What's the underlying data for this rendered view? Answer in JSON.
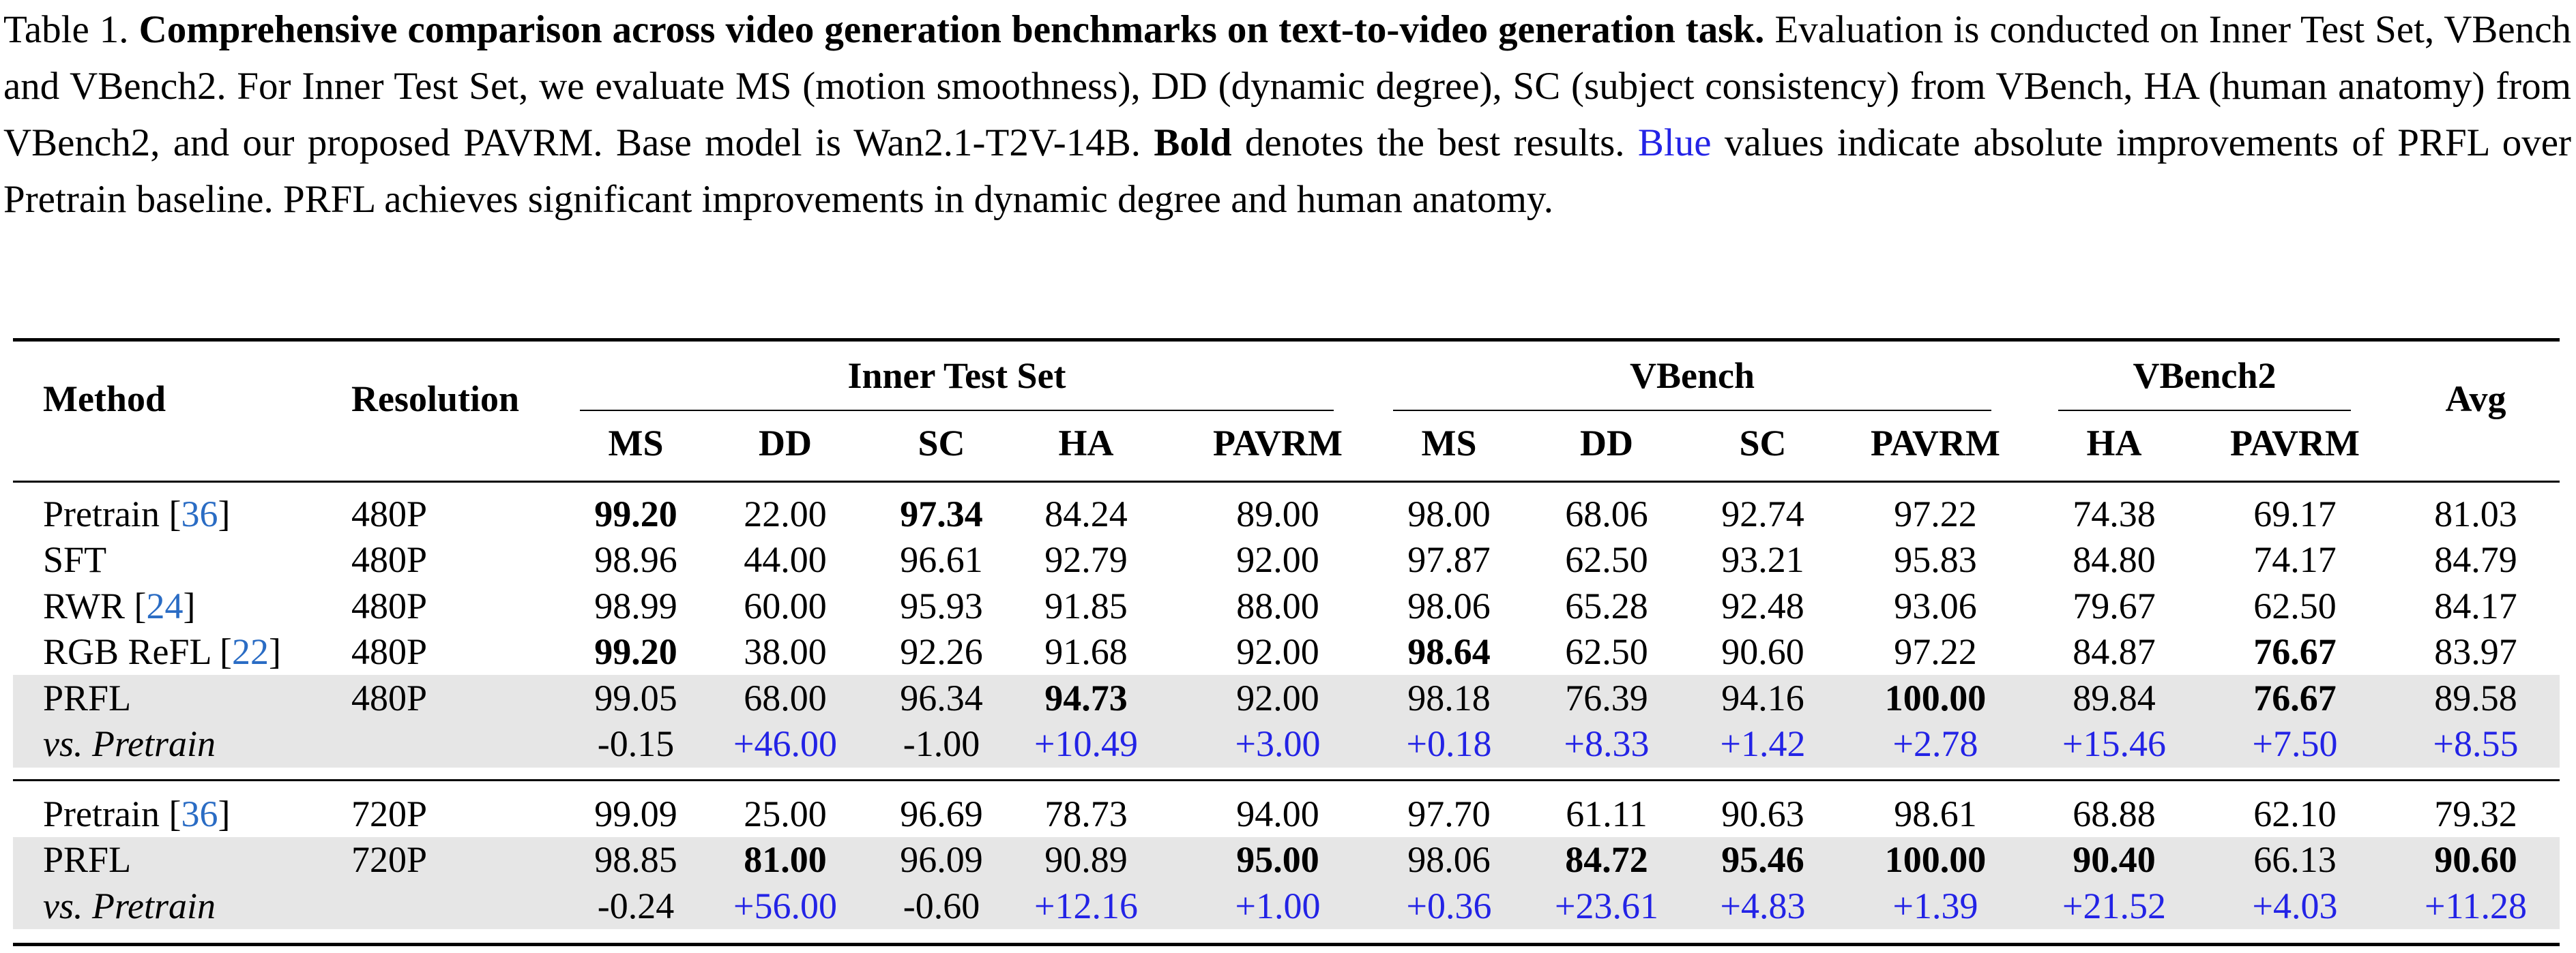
{
  "caption": {
    "label": "Table 1.",
    "title": "Comprehensive comparison across video generation benchmarks on text-to-video generation task.",
    "text_1": "Evaluation is conducted on Inner Test Set, VBench and VBench2. For Inner Test Set, we evaluate MS (motion smoothness), DD (dynamic degree), SC (subject consistency) from VBench, HA (human anatomy) from VBench2, and our proposed PAVRM. Base model is Wan2.1-T2V-14B.",
    "bold_word": "Bold",
    "text_2": "denotes the best results.",
    "blue_word": "Blue",
    "text_3": "values indicate absolute improvements of PRFL over Pretrain baseline. PRFL achieves significant improvements in dynamic degree and human anatomy."
  },
  "table": {
    "method_header": "Method",
    "resolution_header": "Resolution",
    "avg_header": "Avg",
    "groups": [
      {
        "label": "Inner Test Set",
        "columns": [
          "MS",
          "DD",
          "SC",
          "HA",
          "PAVRM"
        ]
      },
      {
        "label": "VBench",
        "columns": [
          "MS",
          "DD",
          "SC",
          "PAVRM"
        ]
      },
      {
        "label": "VBench2",
        "columns": [
          "HA",
          "PAVRM"
        ]
      }
    ],
    "blocks": [
      [
        {
          "method": "Pretrain",
          "ref": "[36]",
          "resolution": "480P",
          "values": [
            "99.20",
            "22.00",
            "97.34",
            "84.24",
            "89.00",
            "98.00",
            "68.06",
            "92.74",
            "97.22",
            "74.38",
            "69.17",
            "81.03"
          ],
          "bold": [
            0,
            2
          ]
        },
        {
          "method": "SFT",
          "resolution": "480P",
          "values": [
            "98.96",
            "44.00",
            "96.61",
            "92.79",
            "92.00",
            "97.87",
            "62.50",
            "93.21",
            "95.83",
            "84.80",
            "74.17",
            "84.79"
          ]
        },
        {
          "method": "RWR",
          "ref": "[24]",
          "resolution": "480P",
          "values": [
            "98.99",
            "60.00",
            "95.93",
            "91.85",
            "88.00",
            "98.06",
            "65.28",
            "92.48",
            "93.06",
            "79.67",
            "62.50",
            "84.17"
          ]
        },
        {
          "method": "RGB ReFL",
          "ref": "[22]",
          "resolution": "480P",
          "values": [
            "99.20",
            "38.00",
            "92.26",
            "91.68",
            "92.00",
            "98.64",
            "62.50",
            "90.60",
            "97.22",
            "84.87",
            "76.67",
            "83.97"
          ],
          "bold": [
            0,
            5,
            10
          ]
        },
        {
          "method": "PRFL",
          "resolution": "480P",
          "values": [
            "99.05",
            "68.00",
            "96.34",
            "94.73",
            "92.00",
            "98.18",
            "76.39",
            "94.16",
            "100.00",
            "89.84",
            "76.67",
            "89.58"
          ],
          "bold": [
            3,
            8,
            10
          ],
          "shaded": true
        },
        {
          "method": "vs. Pretrain",
          "italic": true,
          "shaded": true,
          "values": [
            "-0.15",
            "+46.00",
            "-1.00",
            "+10.49",
            "+3.00",
            "+0.18",
            "+8.33",
            "+1.42",
            "+2.78",
            "+15.46",
            "+7.50",
            "+8.55"
          ],
          "blue": [
            1,
            3,
            4,
            5,
            6,
            7,
            8,
            9,
            10,
            11
          ]
        }
      ],
      [
        {
          "method": "Pretrain",
          "ref": "[36]",
          "resolution": "720P",
          "values": [
            "99.09",
            "25.00",
            "96.69",
            "78.73",
            "94.00",
            "97.70",
            "61.11",
            "90.63",
            "98.61",
            "68.88",
            "62.10",
            "79.32"
          ]
        },
        {
          "method": "PRFL",
          "resolution": "720P",
          "values": [
            "98.85",
            "81.00",
            "96.09",
            "90.89",
            "95.00",
            "98.06",
            "84.72",
            "95.46",
            "100.00",
            "90.40",
            "66.13",
            "90.60"
          ],
          "bold": [
            1,
            4,
            6,
            7,
            8,
            9,
            11
          ],
          "shaded": true
        },
        {
          "method": "vs. Pretrain",
          "italic": true,
          "shaded": true,
          "values": [
            "-0.24",
            "+56.00",
            "-0.60",
            "+12.16",
            "+1.00",
            "+0.36",
            "+23.61",
            "+4.83",
            "+1.39",
            "+21.52",
            "+4.03",
            "+11.28"
          ],
          "blue": [
            1,
            3,
            4,
            5,
            6,
            7,
            8,
            9,
            10,
            11
          ]
        }
      ]
    ]
  }
}
